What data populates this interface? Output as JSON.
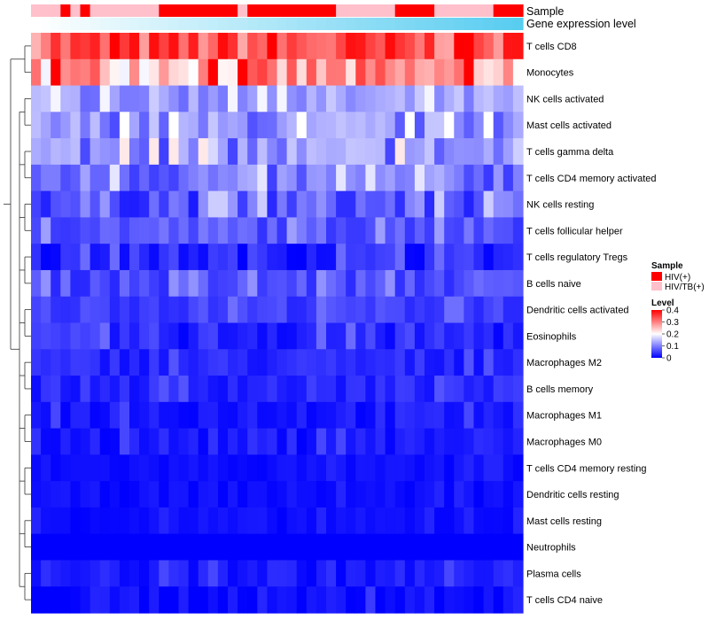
{
  "chart_data": {
    "type": "heatmap",
    "title": "",
    "columns_count": 50,
    "row_labels": [
      "T cells CD8",
      "Monocytes",
      "NK cells activated",
      "Mast cells activated",
      "T cells gamma delta",
      "T cells CD4 memory activated",
      "NK cells resting",
      "T cells follicular helper",
      "T cells regulatory  Tregs",
      "B cells naive",
      "Dendritic cells activated",
      "Eosinophils",
      "Macrophages M2",
      "B cells memory",
      "Macrophages M1",
      "Macrophages M0",
      "T cells CD4 memory resting",
      "Dendritic cells resting",
      "Mast cells resting",
      "Neutrophils",
      "Plasma cells",
      "T cells CD4 naive"
    ],
    "annotation_rows": {
      "sample": {
        "label": "Sample",
        "categories": [
          "HIV(+)",
          "HIV/TB(+)"
        ],
        "colors": {
          "HIV(+)": "#ff0000",
          "HIV/TB(+)": "#ffc0cb"
        },
        "values": [
          1,
          1,
          1,
          0,
          1,
          0,
          1,
          1,
          1,
          1,
          1,
          1,
          1,
          0,
          0,
          0,
          0,
          0,
          0,
          0,
          0,
          1,
          0,
          0,
          0,
          0,
          0,
          0,
          0,
          0,
          0,
          1,
          1,
          1,
          1,
          1,
          1,
          0,
          0,
          0,
          0,
          1,
          1,
          1,
          1,
          1,
          1,
          0,
          0,
          0
        ]
      },
      "gene_expression": {
        "label": "Gene expression level",
        "color_low": "#ffffff",
        "color_high": "#55ccf0",
        "values": [
          0.0,
          0.02,
          0.04,
          0.06,
          0.08,
          0.1,
          0.12,
          0.14,
          0.16,
          0.18,
          0.2,
          0.22,
          0.24,
          0.26,
          0.28,
          0.3,
          0.32,
          0.34,
          0.36,
          0.38,
          0.4,
          0.42,
          0.44,
          0.46,
          0.48,
          0.5,
          0.52,
          0.54,
          0.56,
          0.58,
          0.6,
          0.62,
          0.64,
          0.66,
          0.68,
          0.7,
          0.72,
          0.74,
          0.76,
          0.78,
          0.8,
          0.82,
          0.84,
          0.86,
          0.88,
          0.9,
          0.92,
          0.94,
          0.96,
          0.98
        ]
      }
    },
    "legend": {
      "sample_title": "Sample",
      "sample_entries": [
        "HIV(+)",
        "HIV/TB(+)"
      ],
      "level_title": "Level",
      "level_ticks": [
        "0.4",
        "0.3",
        "0.2",
        "0.1",
        "0"
      ],
      "level_range": [
        0,
        0.4
      ],
      "placement": "right"
    },
    "color_scale": {
      "low": "#0000ff",
      "mid": "#ffffff",
      "high": "#ff0000",
      "min": 0,
      "mid_value": 0.2,
      "max": 0.4
    },
    "row_means": [
      0.33,
      0.27,
      0.12,
      0.11,
      0.11,
      0.09,
      0.07,
      0.07,
      0.03,
      0.06,
      0.05,
      0.03,
      0.03,
      0.03,
      0.02,
      0.02,
      0.01,
      0.01,
      0.01,
      0.0,
      0.02,
      0.01
    ],
    "row_spread": [
      0.07,
      0.08,
      0.04,
      0.05,
      0.06,
      0.05,
      0.05,
      0.03,
      0.03,
      0.03,
      0.02,
      0.03,
      0.02,
      0.02,
      0.02,
      0.02,
      0.01,
      0.01,
      0.01,
      0.0,
      0.02,
      0.02
    ],
    "cell_seed": 7,
    "dendrogram_merges": [
      [
        0,
        1
      ],
      [
        2,
        3
      ],
      [
        4,
        5
      ],
      [
        6,
        7
      ],
      [
        8,
        9
      ],
      [
        10,
        11
      ],
      [
        12,
        13
      ],
      [
        14,
        15
      ],
      [
        16,
        17
      ],
      [
        18,
        19
      ]
    ]
  }
}
